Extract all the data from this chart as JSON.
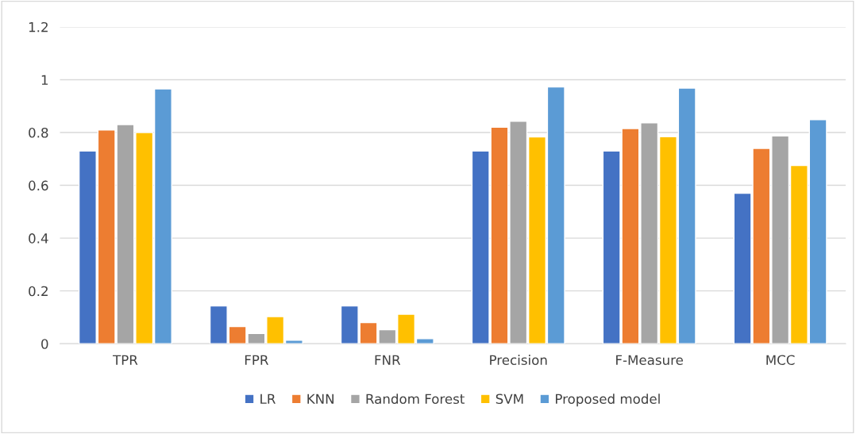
{
  "chart_data": {
    "type": "bar",
    "categories": [
      "TPR",
      "FPR",
      "FNR",
      "Precision",
      "F-Measure",
      "MCC"
    ],
    "series": [
      {
        "name": "LR",
        "color": "#4472c4",
        "values": [
          0.73,
          0.143,
          0.143,
          0.73,
          0.73,
          0.57
        ]
      },
      {
        "name": "KNN",
        "color": "#ed7d31",
        "values": [
          0.81,
          0.065,
          0.08,
          0.82,
          0.815,
          0.74
        ]
      },
      {
        "name": "Random Forest",
        "color": "#a5a5a5",
        "values": [
          0.83,
          0.039,
          0.053,
          0.843,
          0.837,
          0.787
        ]
      },
      {
        "name": "SVM",
        "color": "#ffc000",
        "values": [
          0.8,
          0.103,
          0.112,
          0.783,
          0.784,
          0.675
        ]
      },
      {
        "name": "Proposed model",
        "color": "#5b9bd5",
        "values": [
          0.965,
          0.013,
          0.019,
          0.973,
          0.968,
          0.849
        ]
      }
    ],
    "ylim": [
      0,
      1.2
    ],
    "yticks": [
      0,
      0.2,
      0.4,
      0.6,
      0.8,
      1,
      1.2
    ],
    "grid": "y",
    "legend": "bottom"
  }
}
